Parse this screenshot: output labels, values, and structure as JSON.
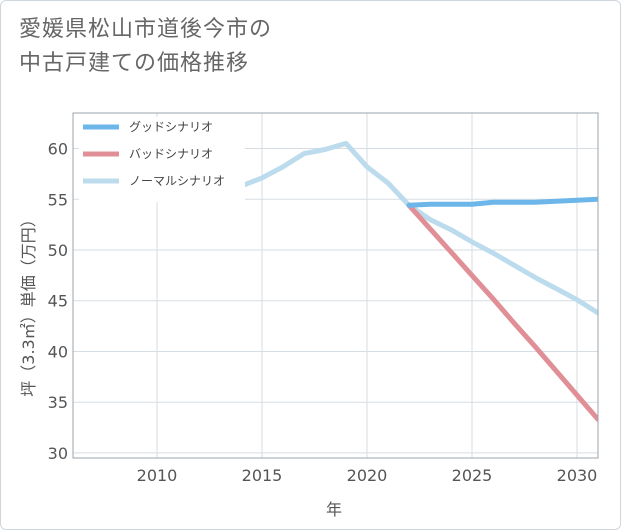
{
  "title_lines": [
    "愛媛県松山市道後今市の",
    "中古戸建ての価格推移"
  ],
  "chart_data": {
    "type": "line",
    "title": "愛媛県松山市道後今市の中古戸建ての価格推移",
    "xlabel": "年",
    "ylabel": "坪（3.3㎡）単価（万円）",
    "xlim": [
      2006,
      2031
    ],
    "ylim": [
      29.5,
      63.5
    ],
    "xticks": [
      2010,
      2015,
      2020,
      2025,
      2030
    ],
    "yticks": [
      30,
      35,
      40,
      45,
      50,
      55,
      60
    ],
    "grid": true,
    "legend_position": "top-left",
    "series": [
      {
        "name": "グッドシナリオ",
        "color": "#6cb6ea",
        "x": [
          2022,
          2023,
          2024,
          2025,
          2026,
          2027,
          2028,
          2029,
          2030,
          2031
        ],
        "y": [
          54.4,
          54.5,
          54.5,
          54.5,
          54.7,
          54.7,
          54.7,
          54.8,
          54.9,
          55.0
        ]
      },
      {
        "name": "バッドシナリオ",
        "color": "#e08f96",
        "x": [
          2022,
          2023,
          2024,
          2025,
          2026,
          2027,
          2028,
          2029,
          2030,
          2031
        ],
        "y": [
          54.4,
          52.1,
          49.8,
          47.5,
          45.2,
          42.8,
          40.5,
          38.1,
          35.7,
          33.3
        ]
      },
      {
        "name": "ノーマルシナリオ",
        "color": "#bcdcee",
        "x": [
          2008,
          2009,
          2010,
          2011,
          2012,
          2013,
          2014,
          2015,
          2016,
          2017,
          2018,
          2019,
          2020,
          2021,
          2022,
          2023,
          2024,
          2025,
          2026,
          2027,
          2028,
          2029,
          2030,
          2031
        ],
        "y": [
          61.5,
          61.8,
          60.6,
          60.8,
          60.0,
          57.5,
          56.3,
          57.1,
          58.2,
          59.5,
          59.9,
          60.5,
          58.2,
          56.6,
          54.4,
          53.0,
          52.0,
          50.8,
          49.7,
          48.5,
          47.3,
          46.2,
          45.1,
          43.8
        ]
      }
    ]
  }
}
